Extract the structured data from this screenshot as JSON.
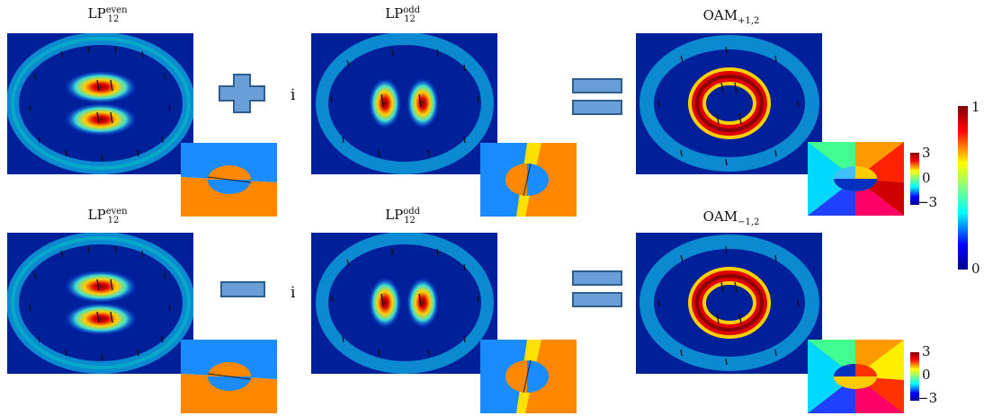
{
  "row1": {
    "label_left": {
      "base": "LP",
      "sup": "even",
      "sub": "12"
    },
    "label_mid": {
      "base": "LP",
      "sup": "odd",
      "sub": "12"
    },
    "label_right": {
      "base": "OAM",
      "sub": "+1,2"
    },
    "factor": "i",
    "operator": "plus"
  },
  "row2": {
    "label_left": {
      "base": "LP",
      "sup": "even",
      "sub": "12"
    },
    "label_mid": {
      "base": "LP",
      "sup": "odd",
      "sub": "12"
    },
    "label_right": {
      "base": "OAM",
      "sub": "−1,2"
    },
    "factor": "i",
    "operator": "minus"
  },
  "phase_colorbar": {
    "max": "3",
    "mid": "0",
    "min": "−3"
  },
  "intensity_colorbar": {
    "max": "1",
    "min": "0"
  },
  "colors": {
    "field_bg": "#00209a",
    "operator_fill": "#6a9ed6",
    "operator_stroke": "#2f5d8e",
    "phase_blue": "#1a8cff",
    "phase_orange": "#ff8800"
  }
}
